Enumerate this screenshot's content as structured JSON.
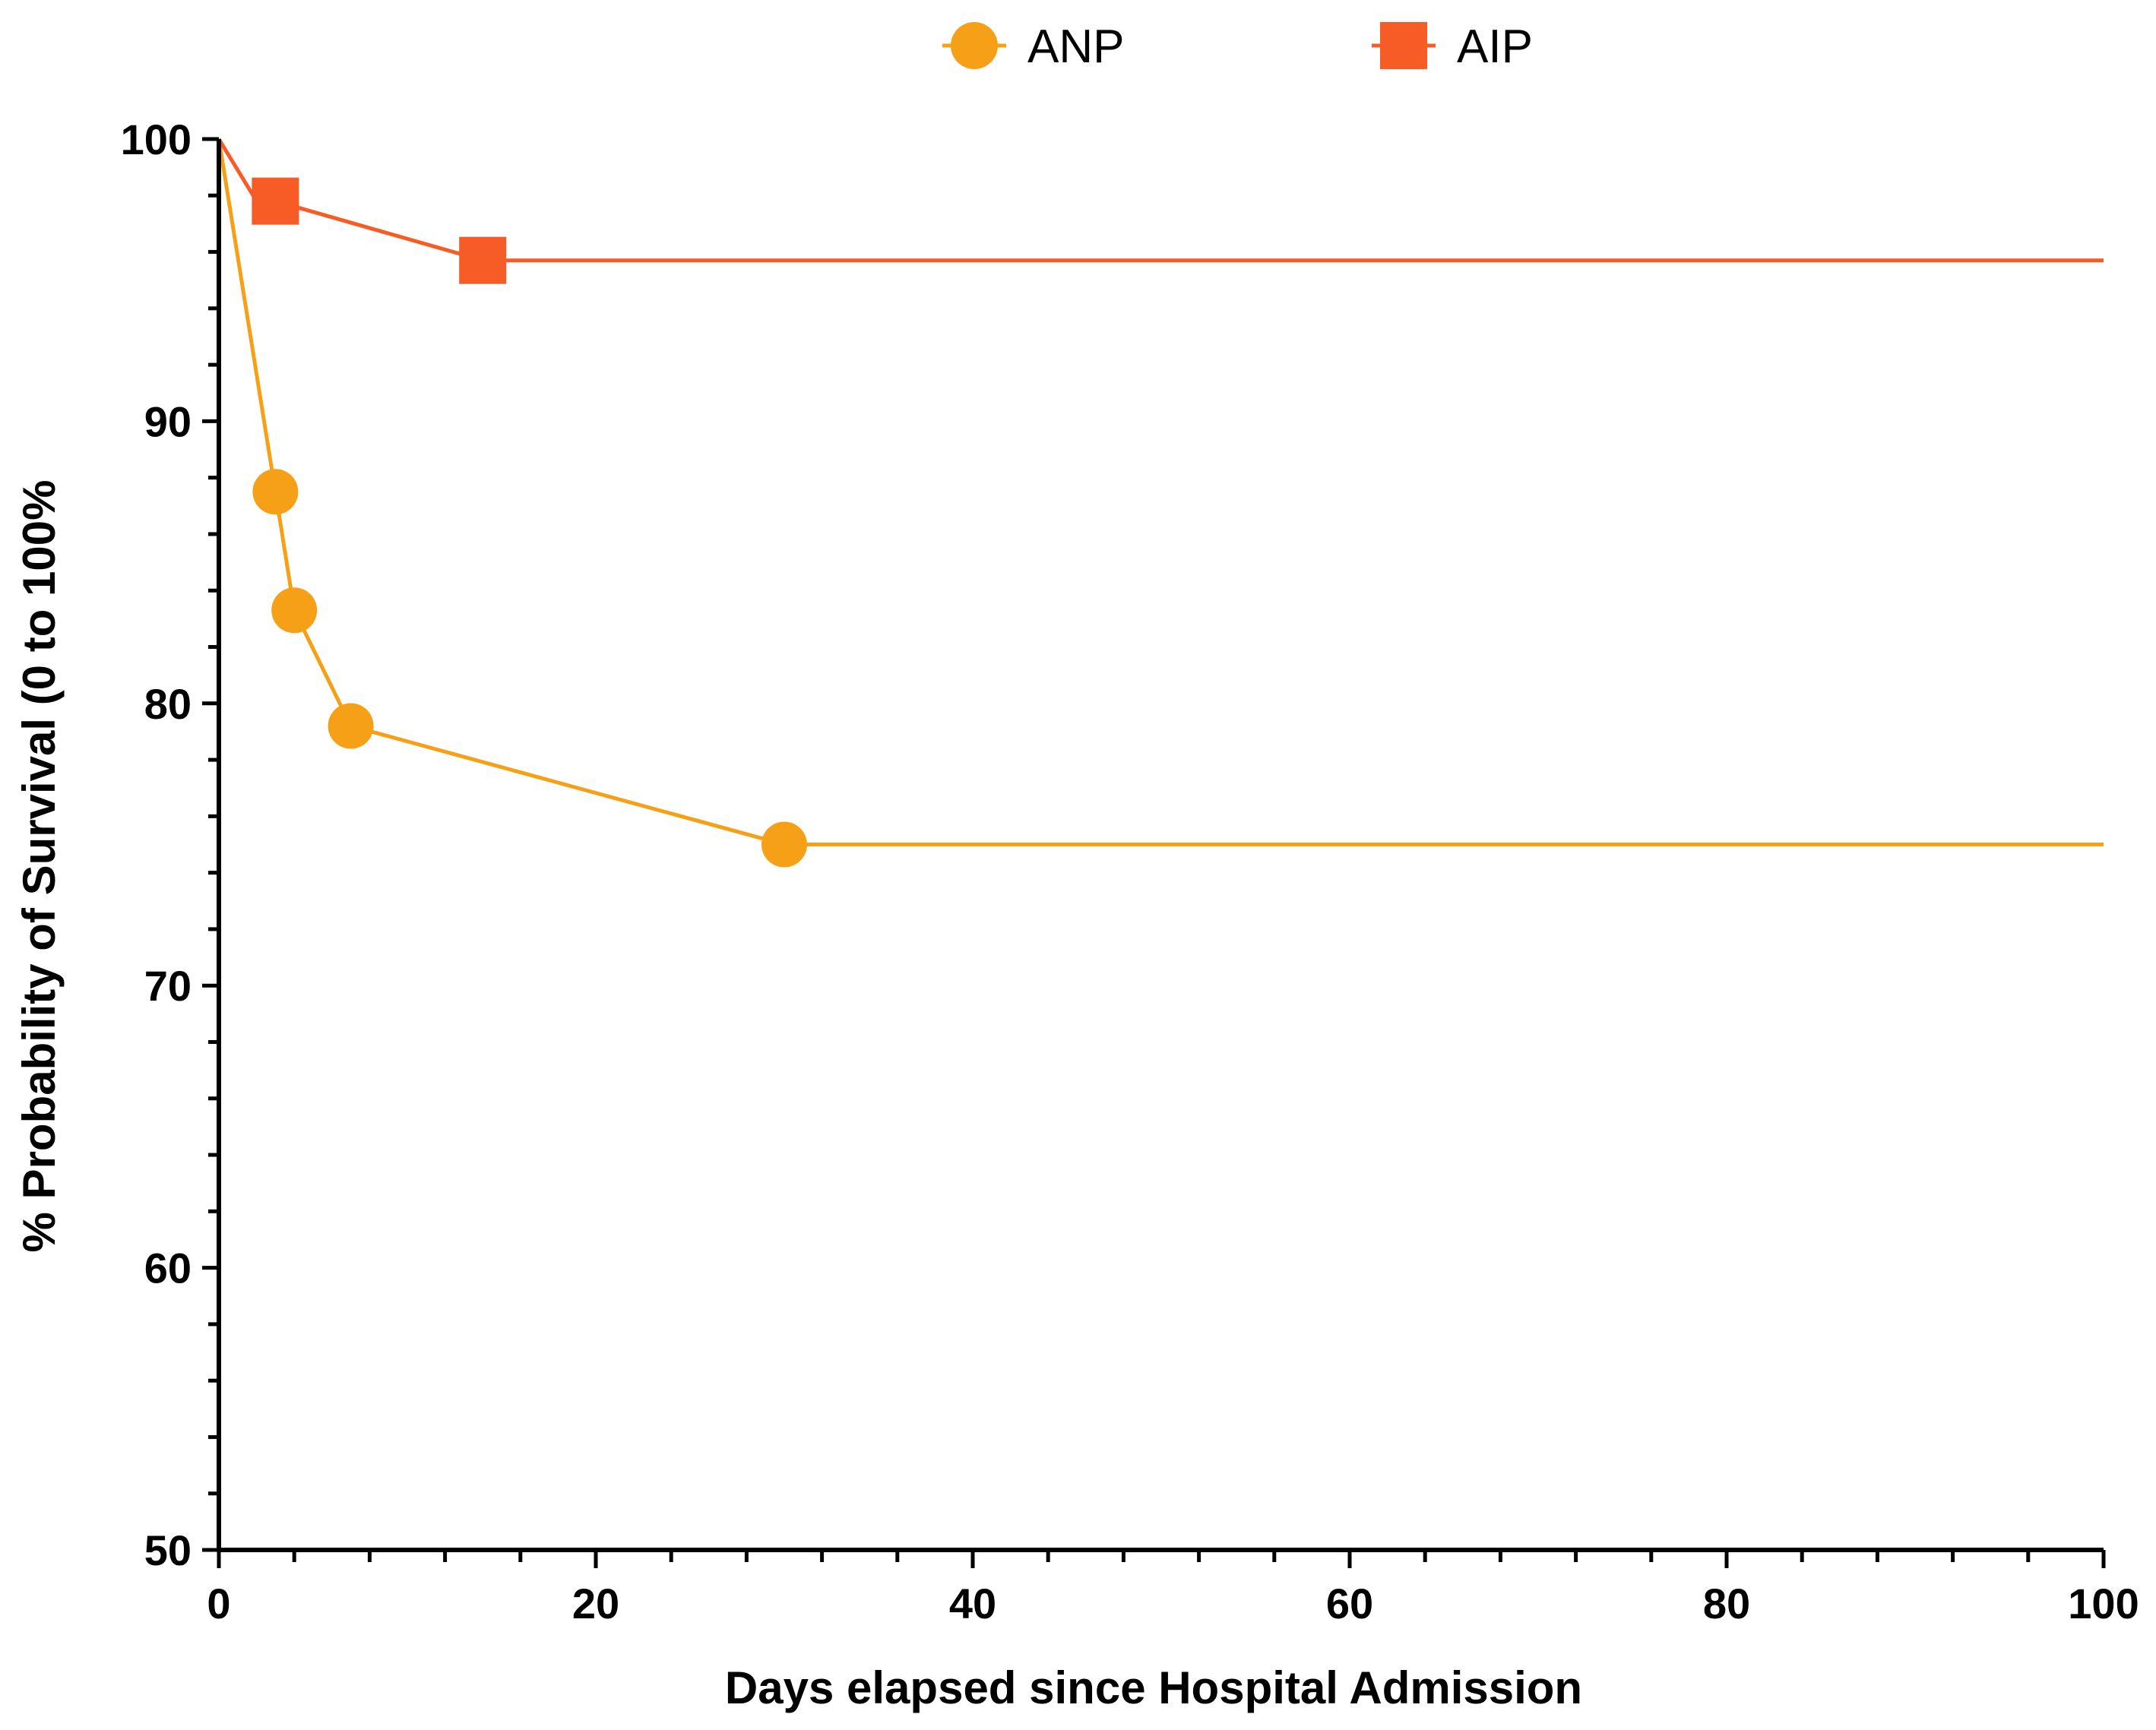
{
  "chart_data": {
    "type": "line",
    "title": "",
    "xlabel": "Days elapsed since Hospital Admission",
    "ylabel": "% Probability of Survival (0 to 100%",
    "xlim": [
      0,
      100
    ],
    "ylim": [
      50,
      100
    ],
    "x_ticks": [
      0,
      20,
      40,
      60,
      80,
      100
    ],
    "y_ticks": [
      50,
      60,
      70,
      80,
      90,
      100
    ],
    "x_minor_step": 4,
    "y_minor_step": 2,
    "grid": false,
    "legend_position": "top-center",
    "series": [
      {
        "name": "ANP",
        "color": "#F5A017",
        "marker": "circle",
        "points": [
          {
            "x": 0,
            "y": 100
          },
          {
            "x": 3,
            "y": 87.5
          },
          {
            "x": 4,
            "y": 83.3
          },
          {
            "x": 7,
            "y": 79.2
          },
          {
            "x": 30,
            "y": 75.0
          },
          {
            "x": 100,
            "y": 75.0
          }
        ],
        "marker_points": [
          {
            "x": 3,
            "y": 87.5
          },
          {
            "x": 4,
            "y": 83.3
          },
          {
            "x": 7,
            "y": 79.2
          },
          {
            "x": 30,
            "y": 75.0
          }
        ]
      },
      {
        "name": "AIP",
        "color": "#F75C27",
        "marker": "square",
        "points": [
          {
            "x": 0,
            "y": 100
          },
          {
            "x": 2,
            "y": 97.8
          },
          {
            "x": 3,
            "y": 97.8
          },
          {
            "x": 14,
            "y": 95.7
          },
          {
            "x": 100,
            "y": 95.7
          }
        ],
        "marker_points": [
          {
            "x": 3,
            "y": 97.8
          },
          {
            "x": 14,
            "y": 95.7
          }
        ]
      }
    ]
  }
}
